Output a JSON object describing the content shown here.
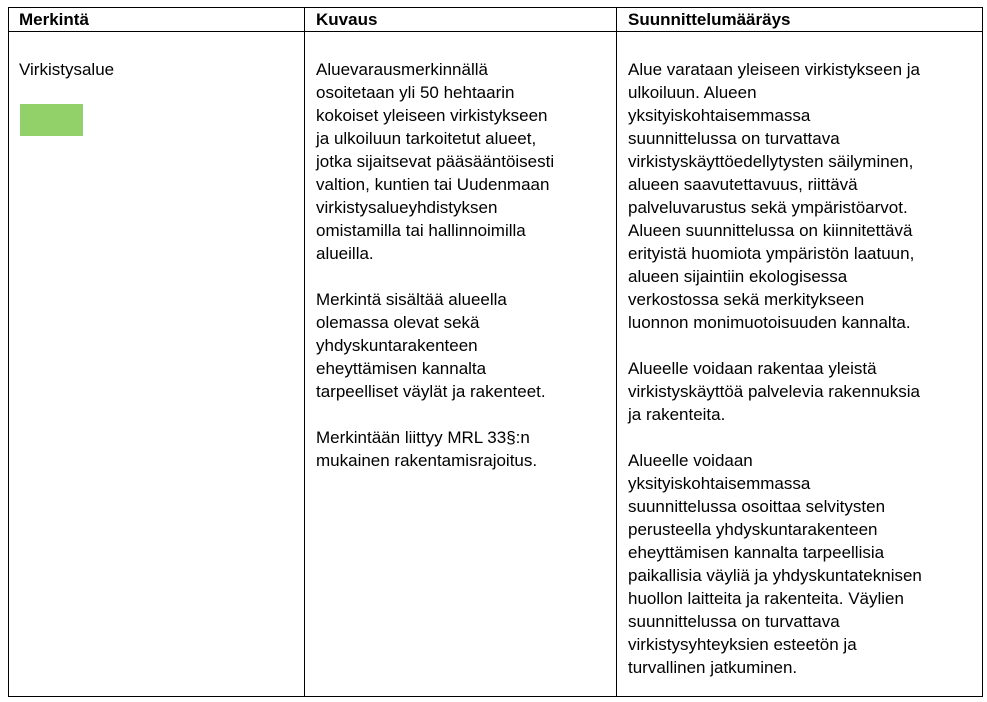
{
  "headers": [
    "Merkintä",
    "Kuvaus",
    "Suunnittelumääräys"
  ],
  "row": {
    "merkinta": {
      "label": "Virkistysalue",
      "swatch_color": "#92d06a"
    },
    "kuvaus": [
      [
        "Aluevarausmerkinnällä",
        "osoitetaan yli 50 hehtaarin",
        "kokoiset yleiseen virkistykseen",
        "ja ulkoiluun tarkoitetut alueet,",
        "jotka sijaitsevat pääsääntöisesti",
        "valtion, kuntien tai Uudenmaan",
        "virkistysalueyhdistyksen",
        "omistamilla tai hallinnoimilla",
        "alueilla."
      ],
      [
        "Merkintä sisältää alueella",
        "olemassa olevat sekä",
        "yhdyskuntarakenteen",
        "eheyttämisen kannalta",
        "tarpeelliset väylät ja rakenteet."
      ],
      [
        "Merkintään liittyy MRL 33§:n",
        "mukainen rakentamisrajoitus."
      ]
    ],
    "suunnittelumaarays": [
      [
        "Alue varataan yleiseen virkistykseen ja",
        "ulkoiluun. Alueen",
        "yksityiskohtaisemmassa",
        "suunnittelussa on turvattava",
        "virkistyskäyttöedellytysten säilyminen,",
        "alueen saavutettavuus, riittävä",
        "palveluvarustus sekä ympäristöarvot.",
        "Alueen suunnittelussa on kiinnitettävä",
        "erityistä huomiota ympäristön laatuun,",
        "alueen sijaintiin ekologisessa",
        "verkostossa sekä merkitykseen",
        "luonnon monimuotoisuuden kannalta."
      ],
      [
        "Alueelle voidaan rakentaa yleistä",
        "virkistyskäyttöä palvelevia rakennuksia",
        "ja rakenteita."
      ],
      [
        "Alueelle voidaan",
        "yksityiskohtaisemmassa",
        "suunnittelussa osoittaa selvitysten",
        "perusteella yhdyskuntarakenteen",
        "eheyttämisen kannalta tarpeellisia",
        "paikallisia väyliä ja yhdyskuntateknisen",
        "huollon laitteita ja rakenteita. Väylien",
        "suunnittelussa on turvattava",
        "virkistysyhteyksien esteetön ja",
        "turvallinen jatkuminen."
      ]
    ]
  }
}
